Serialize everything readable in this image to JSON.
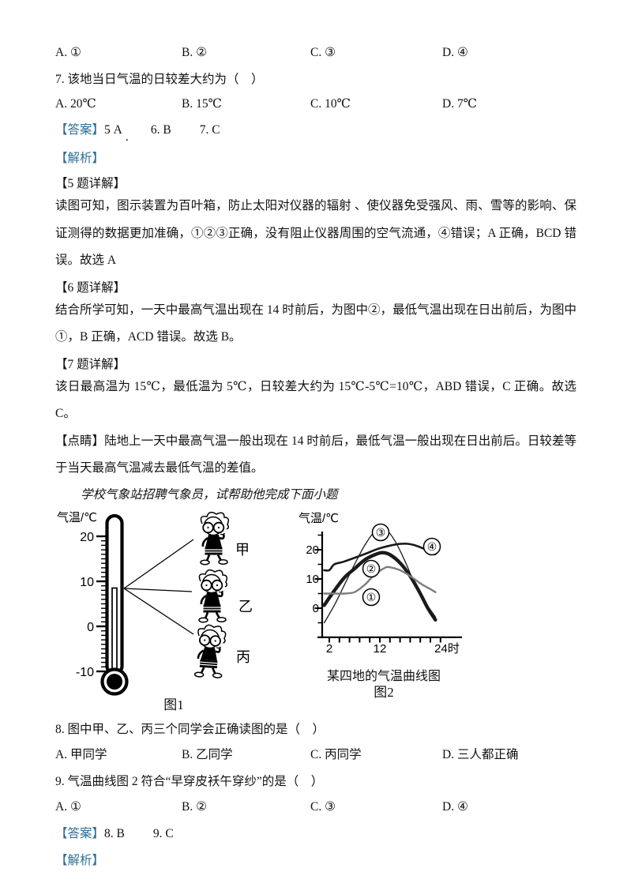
{
  "colors": {
    "answer_tag_blue": "#2e6d93",
    "body_text": "#111111",
    "curve_gray": "#7c7c7c"
  },
  "doc": {
    "q6_options": {
      "a": "A. ①",
      "b": "B. ②",
      "c": "C. ③",
      "d": "D. ④"
    },
    "q7": {
      "stem": "7. 该地当日气温的日较差大约为（　）",
      "options": {
        "a": "A. 20℃",
        "b": "B. 15℃",
        "c": "C. 10℃",
        "d": "D. 7℃"
      }
    },
    "answers_567": {
      "tag": "【答案】",
      "a": "5 A",
      "stray": ".",
      "b": "6. B",
      "c": "7. C"
    },
    "analysis_tag_1": "【解析】",
    "d5": {
      "heading": "【5 题详解】",
      "text": "读图可知，图示装置为百叶箱，防止太阳对仪器的辐射 、使仪器免受强风、雨、雪等的影响、保证测得的数据更加准确，①②③正确，没有阻止仪器周围的空气流通，④错误；A 正确，BCD 错误。故选 A"
    },
    "d6": {
      "heading": "【6 题详解】",
      "text": "结合所学可知，一天中最高气温出现在 14 时前后，为图中②，最低气温出现在日出前后，为图中①，B 正确，ACD 错误。故选 B。"
    },
    "d7": {
      "heading": "【7 题详解】",
      "text": "该日最高温为 15℃，最低温为 5℃，日较差大约为 15℃-5℃=10℃，ABD 错误，C 正确。故选 C。"
    },
    "tip": {
      "tag": "【点睛】",
      "text": "陆地上一天中最高气温一般出现在 14 时前后，最低气温一般出现在日出前后。日较差等于当天最高气温减去最低气温的差值。"
    },
    "intro": "学校气象站招聘气象员，试帮助他完成下面小题",
    "q8": {
      "stem": "8. 图中甲、乙、丙三个同学会正确读图的是（　）",
      "options": {
        "a": "A. 甲同学",
        "b": "B. 乙同学",
        "c": "C. 丙同学",
        "d": "D. 三人都正确"
      }
    },
    "q9": {
      "stem": "9. 气温曲线图 2 符合“早穿皮袄午穿纱”的是（　）",
      "options": {
        "a": "A. ①",
        "b": "B. ②",
        "c": "C. ③",
        "d": "D. ④"
      }
    },
    "answers_89": {
      "tag": "【答案】",
      "a": "8. B",
      "b": "9. C"
    },
    "analysis_tag_2": "【解析】"
  },
  "figure1": {
    "ylabel": "气温/℃",
    "scale_labels": [
      "20",
      "10",
      "0",
      "-10"
    ],
    "scale_values": [
      20,
      10,
      0,
      -10
    ],
    "students": [
      "甲",
      "乙",
      "丙"
    ],
    "thermometer_reading_celsius": 8.5,
    "caption": "图1"
  },
  "figure2": {
    "title": "某四地的气温曲线图",
    "caption": "图2"
  },
  "chart_data": {
    "type": "line",
    "title": "某四地的气温曲线图",
    "ylabel": "气温/℃",
    "x_unit": "时",
    "x_tick_labels": [
      "2",
      "12",
      "24时"
    ],
    "x_tick_values": [
      2,
      12,
      24
    ],
    "y_tick_labels": [
      "0",
      "10",
      "20"
    ],
    "y_tick_values": [
      0,
      10,
      20
    ],
    "x_range": [
      1,
      24
    ],
    "y_range": [
      -6,
      28
    ],
    "grid": false,
    "legend_position": "labels-on-curves",
    "series": [
      {
        "name": "①",
        "color": "#7c7c7c",
        "stroke_width": 2.4,
        "x": [
          1,
          3,
          5,
          7,
          9,
          11,
          13,
          14,
          16,
          18,
          20,
          21.5,
          23
        ],
        "values": [
          5,
          5,
          5,
          5.5,
          8,
          11.5,
          13.8,
          14,
          13,
          11,
          8.5,
          7,
          5.5
        ]
      },
      {
        "name": "②",
        "color": "#1a1a1a",
        "stroke_width": 4.4,
        "x": [
          1,
          3,
          5,
          7,
          9,
          11,
          12.5,
          14,
          16,
          18,
          20,
          21.5,
          23
        ],
        "values": [
          1,
          6,
          10.5,
          13.5,
          16.5,
          18.3,
          19,
          18.3,
          15.5,
          11,
          5,
          0,
          -4
        ]
      },
      {
        "name": "③",
        "color": "#1a1a1a",
        "stroke_width": 1.3,
        "x": [
          1,
          3,
          5,
          7,
          9,
          11,
          12,
          13,
          15,
          17,
          19,
          21,
          23
        ],
        "values": [
          -5,
          1,
          8,
          15,
          21.5,
          26.5,
          28,
          27.5,
          23,
          16,
          8,
          2,
          -3
        ]
      },
      {
        "name": "④",
        "color": "#1a1a1a",
        "stroke_width": 2.6,
        "x": [
          1,
          2,
          3,
          5,
          9,
          12,
          16,
          19,
          23
        ],
        "values": [
          13,
          13,
          15,
          16,
          18.5,
          20.5,
          22,
          21.5,
          18.5
        ]
      }
    ]
  }
}
